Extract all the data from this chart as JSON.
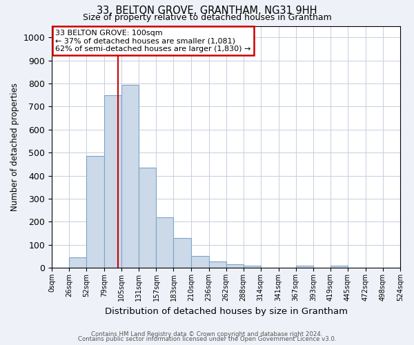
{
  "title1": "33, BELTON GROVE, GRANTHAM, NG31 9HH",
  "title2": "Size of property relative to detached houses in Grantham",
  "xlabel": "Distribution of detached houses by size in Grantham",
  "ylabel": "Number of detached properties",
  "bin_edges": [
    0,
    26,
    52,
    79,
    105,
    131,
    157,
    183,
    210,
    236,
    262,
    288,
    314,
    341,
    367,
    393,
    419,
    445,
    472,
    498,
    524
  ],
  "bar_heights": [
    0,
    45,
    485,
    750,
    795,
    435,
    220,
    130,
    50,
    28,
    15,
    10,
    0,
    0,
    8,
    0,
    8,
    0,
    0,
    0
  ],
  "bar_color": "#ccd9e8",
  "bar_edge_color": "#7ba3c8",
  "property_line_x": 100,
  "property_line_color": "#cc0000",
  "annotation_text": "33 BELTON GROVE: 100sqm\n← 37% of detached houses are smaller (1,081)\n62% of semi-detached houses are larger (1,830) →",
  "annotation_box_color": "white",
  "annotation_box_edge_color": "#cc0000",
  "ylim": [
    0,
    1050
  ],
  "yticks": [
    0,
    100,
    200,
    300,
    400,
    500,
    600,
    700,
    800,
    900,
    1000
  ],
  "footnote1": "Contains HM Land Registry data © Crown copyright and database right 2024.",
  "footnote2": "Contains public sector information licensed under the Open Government Licence v3.0.",
  "bg_color": "#eef2f8",
  "plot_bg_color": "white",
  "grid_color": "#c5cfe0"
}
